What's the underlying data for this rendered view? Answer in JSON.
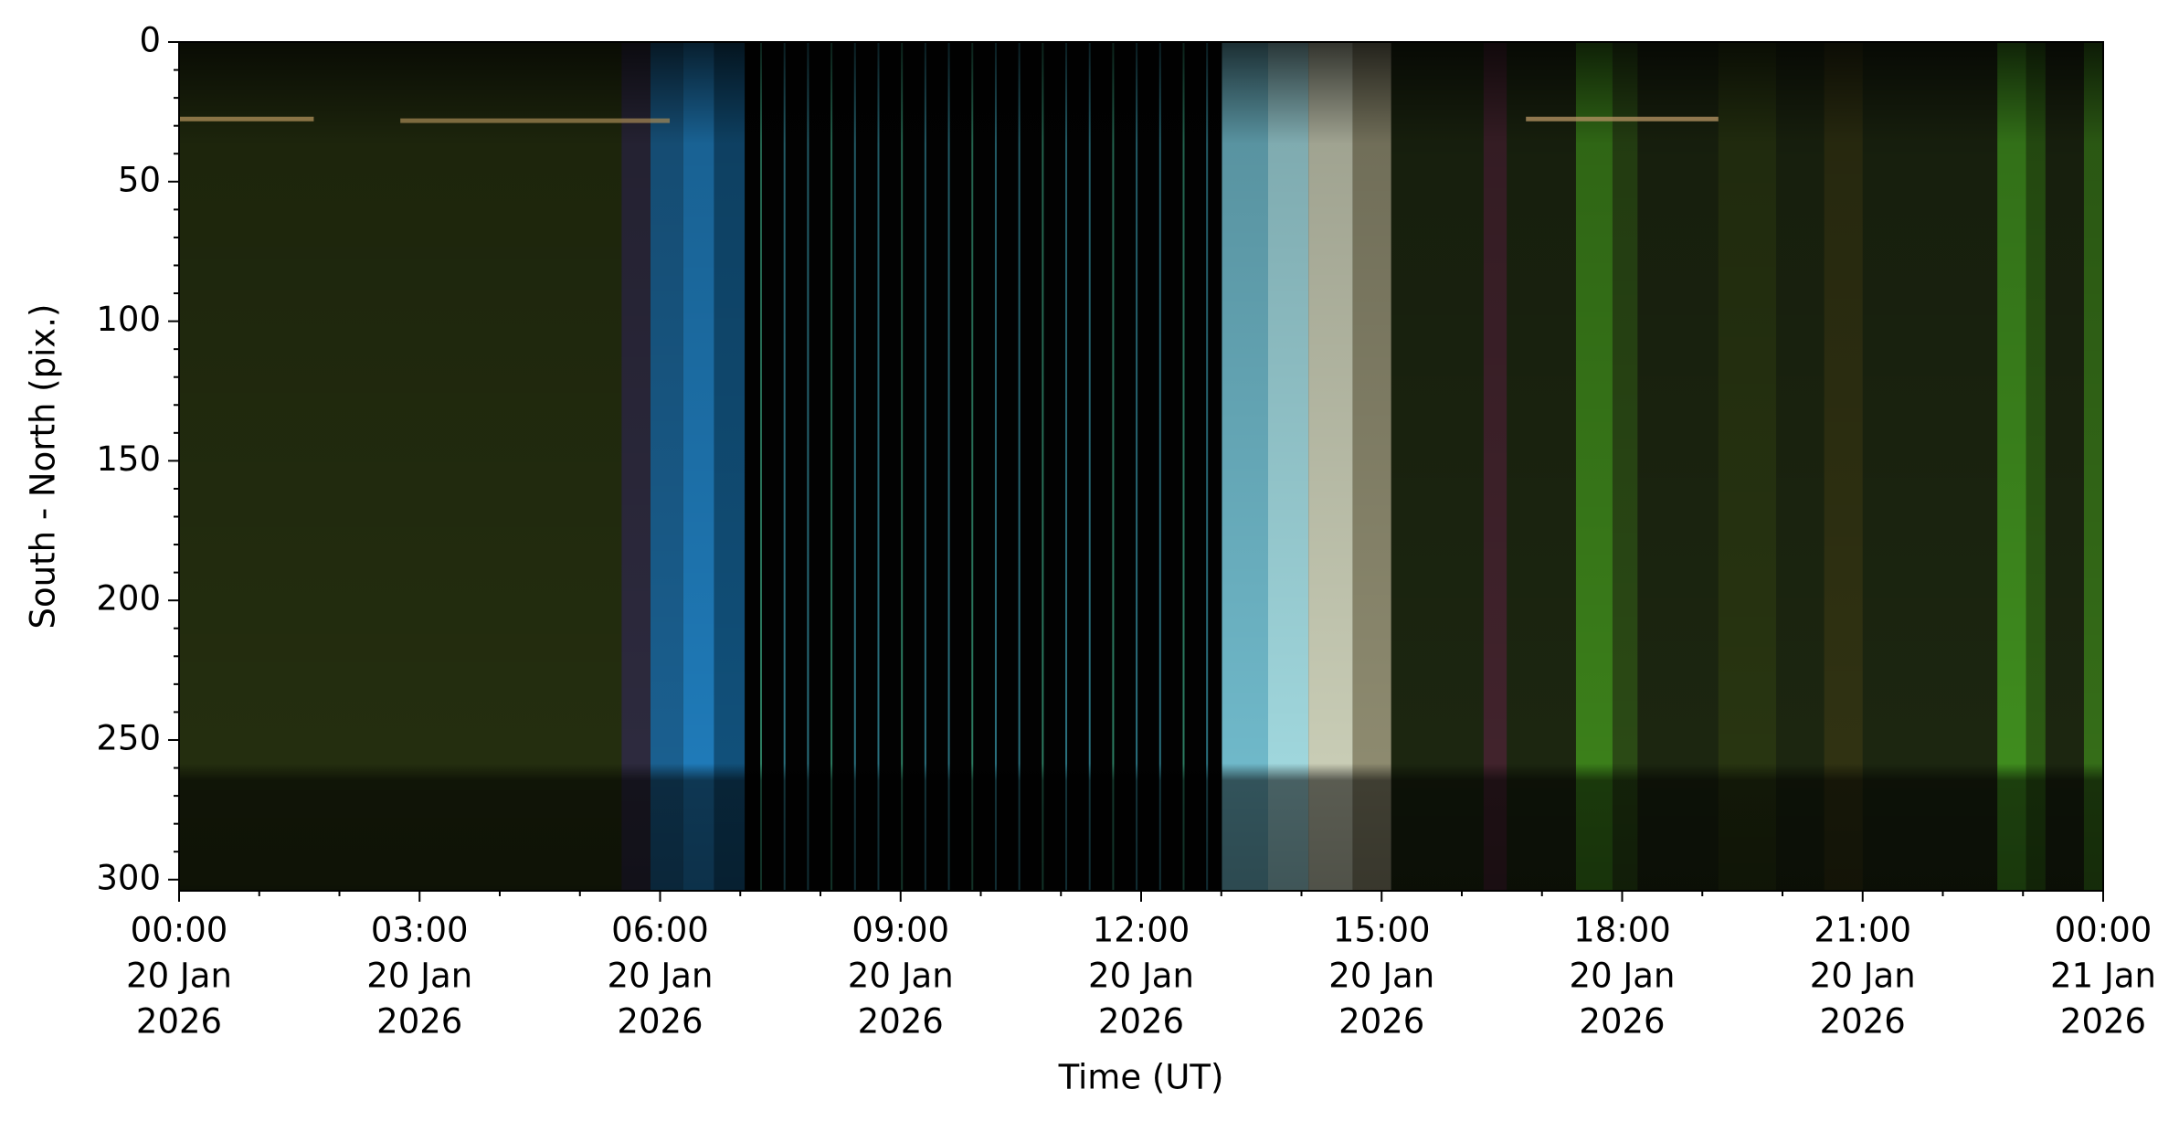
{
  "chart_data": {
    "type": "keogram",
    "xlabel": "Time (UT)",
    "ylabel": "South - North (pix.)",
    "xlim": [
      "2026-01-20T00:00",
      "2026-01-21T00:00"
    ],
    "xticks": [
      {
        "value": "2026-01-20T00:00",
        "label": [
          "00:00",
          "20 Jan",
          "2026"
        ]
      },
      {
        "value": "2026-01-20T03:00",
        "label": [
          "03:00",
          "20 Jan",
          "2026"
        ]
      },
      {
        "value": "2026-01-20T06:00",
        "label": [
          "06:00",
          "20 Jan",
          "2026"
        ]
      },
      {
        "value": "2026-01-20T09:00",
        "label": [
          "09:00",
          "20 Jan",
          "2026"
        ]
      },
      {
        "value": "2026-01-20T12:00",
        "label": [
          "12:00",
          "20 Jan",
          "2026"
        ]
      },
      {
        "value": "2026-01-20T15:00",
        "label": [
          "15:00",
          "20 Jan",
          "2026"
        ]
      },
      {
        "value": "2026-01-20T18:00",
        "label": [
          "18:00",
          "20 Jan",
          "2026"
        ]
      },
      {
        "value": "2026-01-20T21:00",
        "label": [
          "21:00",
          "20 Jan",
          "2026"
        ]
      },
      {
        "value": "2026-01-21T00:00",
        "label": [
          "00:00",
          "21 Jan",
          "2026"
        ]
      }
    ],
    "xminorticks": [
      "2026-01-20T01:00",
      "2026-01-20T02:00",
      "2026-01-20T04:00",
      "2026-01-20T05:00",
      "2026-01-20T07:00",
      "2026-01-20T08:00",
      "2026-01-20T10:00",
      "2026-01-20T11:00",
      "2026-01-20T13:00",
      "2026-01-20T14:00",
      "2026-01-20T16:00",
      "2026-01-20T17:00",
      "2026-01-20T19:00",
      "2026-01-20T20:00",
      "2026-01-20T22:00",
      "2026-01-20T23:00"
    ],
    "ylim": [
      304,
      0
    ],
    "yticks": [
      0,
      50,
      100,
      150,
      200,
      250,
      300
    ],
    "yminorticks": [
      10,
      20,
      30,
      40,
      60,
      70,
      80,
      90,
      110,
      120,
      130,
      140,
      160,
      170,
      180,
      190,
      210,
      220,
      230,
      240,
      260,
      270,
      280,
      290
    ]
  }
}
